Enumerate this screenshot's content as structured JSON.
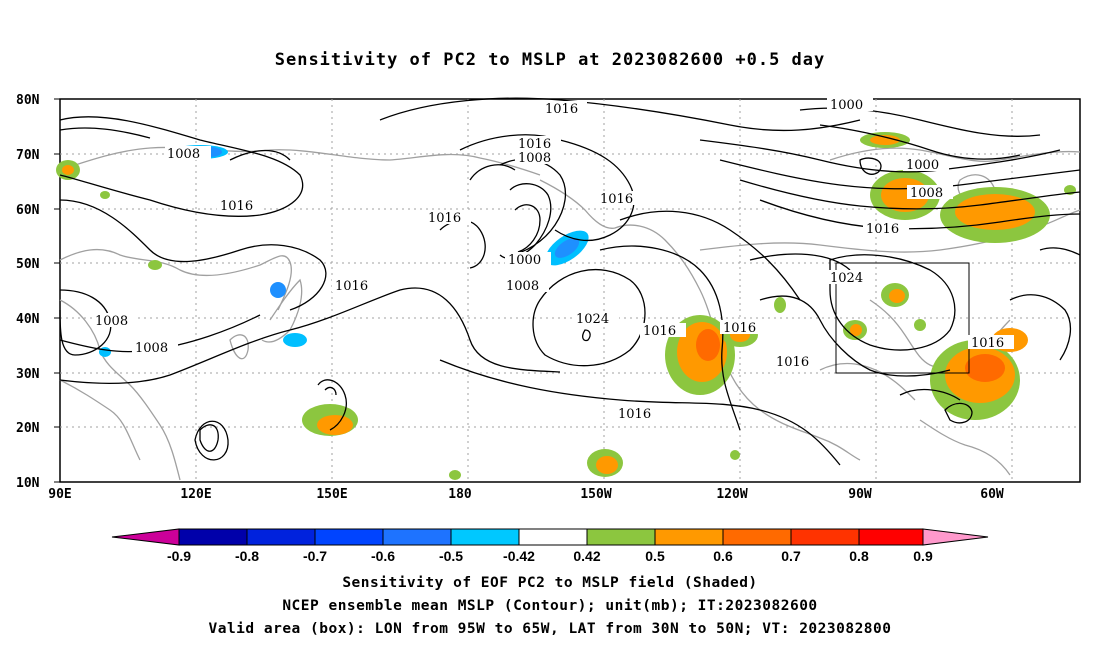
{
  "title": "Sensitivity of PC2 to MSLP at 2023082600 +0.5 day",
  "map": {
    "lat_labels": [
      "80N",
      "70N",
      "60N",
      "50N",
      "40N",
      "30N",
      "20N",
      "10N"
    ],
    "lon_labels": [
      "90E",
      "120E",
      "150E",
      "180",
      "150W",
      "120W",
      "90W",
      "60W"
    ],
    "contour_labels": [
      "1016",
      "1000",
      "1016",
      "1008",
      "1008",
      "1016",
      "1016",
      "1000",
      "1008",
      "1016",
      "1016",
      "1016",
      "1024",
      "1000",
      "1008",
      "1016",
      "1024",
      "1008",
      "1008",
      "1016",
      "1016",
      "1016",
      "1016",
      "1016"
    ],
    "valid_box": {
      "lon_range": [
        "95W",
        "65W"
      ],
      "lat_range": [
        "30N",
        "50N"
      ]
    },
    "colors": {
      "contour": "#000000",
      "coastline": "#a0a0a0",
      "grid": "#a0a0a0",
      "positive_042_05": "#8cc63f",
      "positive_05_06": "#ff9900",
      "positive_06_07": "#ff6a00",
      "negative_042_05": "#00bfff",
      "negative_05_06": "#1e90ff"
    }
  },
  "colorbar": {
    "labels": [
      "-0.9",
      "-0.8",
      "-0.7",
      "-0.6",
      "-0.5",
      "-0.42",
      "0.42",
      "0.5",
      "0.6",
      "0.7",
      "0.8",
      "0.9"
    ],
    "colors": [
      "#cc0099",
      "#0000aa",
      "#0022dd",
      "#0044ff",
      "#1e73ff",
      "#0099ff",
      "#00c8ff",
      "#ffffff",
      "#8cc63f",
      "#ff9900",
      "#ff6a00",
      "#ff3300",
      "#ff0000",
      "#ff99cc"
    ]
  },
  "captions": {
    "line1": "Sensitivity of EOF PC2 to MSLP field (Shaded)",
    "line2": "NCEP ensemble mean MSLP (Contour); unit(mb); IT:2023082600",
    "line3": "Valid area (box): LON from 95W to 65W, LAT from 30N to 50N; VT: 2023082800"
  }
}
